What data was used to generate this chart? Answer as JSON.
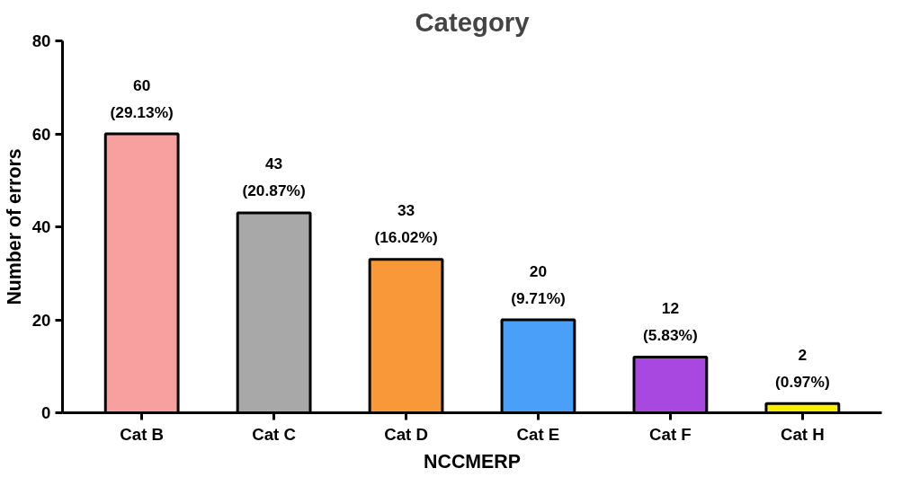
{
  "chart_data": {
    "type": "bar",
    "title": "Category",
    "xlabel": "NCCMERP",
    "ylabel": "Number of errors",
    "categories": [
      "Cat B",
      "Cat C",
      "Cat D",
      "Cat E",
      "Cat F",
      "Cat H"
    ],
    "values": [
      60,
      43,
      33,
      20,
      12,
      2
    ],
    "colors": [
      "#f8a0a0",
      "#a8a8a8",
      "#f89838",
      "#4aa0f8",
      "#a848e0",
      "#f8f000"
    ],
    "value_labels": [
      "60\n(29.13%)",
      "43\n(20.87%)",
      "33\n(16.02%)",
      "20\n(9.71%)",
      "12\n(5.83%)",
      "2\n(0.97%)"
    ],
    "ylim": [
      0,
      80
    ],
    "yticks": [
      0,
      20,
      40,
      60,
      80
    ],
    "grid": false
  }
}
